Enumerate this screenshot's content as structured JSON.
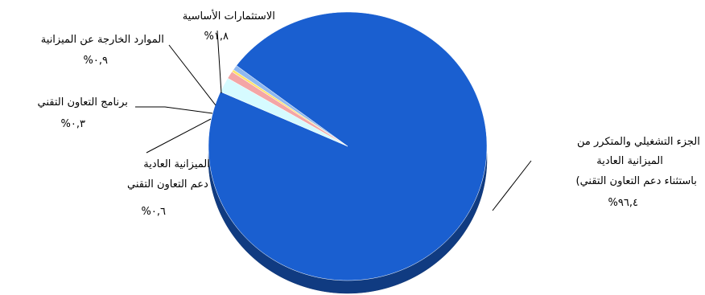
{
  "chart_data": {
    "type": "pie",
    "title": "",
    "legend": "none",
    "slices": [
      {
        "lines": [
          "الجزء التشغيلي والمتكرر من",
          "الميزانية العادية",
          "(باستثناء دعم التعاون التقني",
          "%٩٦,٤"
        ],
        "value": 96.4,
        "color": "#1a5fd0"
      },
      {
        "lines": [
          "الميزانية العادية",
          "دعم التعاون التقني",
          "%٠,٦"
        ],
        "value": 0.6,
        "color": "#8fb8f0"
      },
      {
        "lines": [
          "برنامج التعاون التقني",
          "%٠,٣"
        ],
        "value": 0.3,
        "color": "#ffe36a"
      },
      {
        "lines": [
          "الموارد الخارجة عن الميزانية",
          "%٠,٩"
        ],
        "value": 0.9,
        "color": "#f4a6a6"
      },
      {
        "lines": [
          "الاستثمارات الأساسية",
          "%١,٨"
        ],
        "value": 1.8,
        "color": "#d6fbff"
      }
    ]
  }
}
